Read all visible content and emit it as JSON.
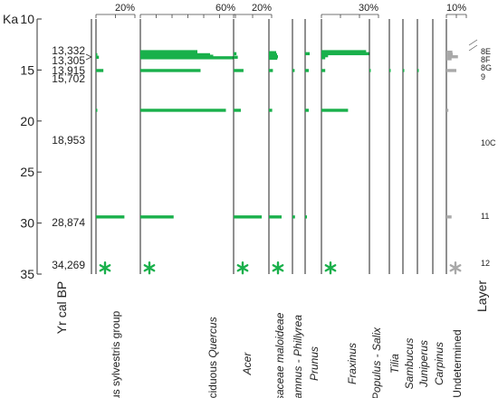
{
  "chart_data": {
    "type": "bar",
    "orientation": "horizontal",
    "y_axis": {
      "unit_label": "Ka",
      "label": "Yr cal  BP",
      "range": [
        10,
        35
      ],
      "ticks": [
        10,
        15,
        20,
        25,
        30,
        35
      ]
    },
    "samples": [
      {
        "age_label": "13,332",
        "age": 13.332,
        "layer": "8E"
      },
      {
        "age_label": "13,305",
        "age": 13.75,
        "layer": "8F"
      },
      {
        "age_label": "13,915",
        "age": 14.3,
        "layer": "8G"
      },
      {
        "age_label": "15,702",
        "age": 15.05,
        "layer": "9"
      },
      {
        "age_label": "18,953",
        "age": 18.95,
        "layer": "10C"
      },
      {
        "age_label": "28,874",
        "age": 29.35,
        "layer": "11"
      },
      {
        "age_label": "34,269",
        "age": 34.3,
        "layer": "12"
      }
    ],
    "layer_header": "Layer",
    "taxa": [
      {
        "parts": [
          {
            "t": "Pinus sylvestris group",
            "i": false
          }
        ],
        "color": "#19b04b",
        "scale_max": 20,
        "scale_label": "20%",
        "asterisk": true,
        "bars": [
          {
            "y": 13.25,
            "v": 0
          },
          {
            "y": 13.5,
            "v": 0.6
          },
          {
            "y": 13.75,
            "v": 1.5
          },
          {
            "y": 15.05,
            "v": 3.8
          },
          {
            "y": 18.95,
            "v": 0.6
          },
          {
            "y": 29.4,
            "v": 14.6
          }
        ]
      },
      {
        "parts": [
          {
            "t": "deciduous ",
            "i": false
          },
          {
            "t": "Quercus",
            "i": true
          }
        ],
        "color": "#19b04b",
        "scale_max": 60,
        "scale_label": "60%",
        "asterisk": true,
        "bars": [
          {
            "y": 13.2,
            "v": 36
          },
          {
            "y": 13.35,
            "v": 36
          },
          {
            "y": 13.5,
            "v": 44
          },
          {
            "y": 13.65,
            "v": 46
          },
          {
            "y": 13.8,
            "v": 59
          },
          {
            "y": 15.05,
            "v": 38
          },
          {
            "y": 18.95,
            "v": 54
          },
          {
            "y": 29.4,
            "v": 21
          }
        ]
      },
      {
        "parts": [
          {
            "t": "Acer",
            "i": true
          }
        ],
        "color": "#19b04b",
        "scale_max": 20,
        "scale_label": "20%",
        "asterisk": true,
        "bars": [
          {
            "y": 13.4,
            "v": 1.5
          },
          {
            "y": 13.75,
            "v": 2.2
          },
          {
            "y": 15.05,
            "v": 5.2
          },
          {
            "y": 18.95,
            "v": 3.8
          },
          {
            "y": 29.4,
            "v": 14.8
          }
        ]
      },
      {
        "parts": [
          {
            "t": "Rosaceae maloideae",
            "i": true
          }
        ],
        "color": "#19b04b",
        "scale_max": null,
        "scale_label": "",
        "asterisk": true,
        "bars": [
          {
            "y": 13.3,
            "v": 4
          },
          {
            "y": 13.5,
            "v": 4.5
          },
          {
            "y": 13.7,
            "v": 5
          },
          {
            "y": 13.85,
            "v": 4.6
          },
          {
            "y": 15.05,
            "v": 2.2
          },
          {
            "y": 18.95,
            "v": 1.8
          },
          {
            "y": 29.4,
            "v": 7
          }
        ]
      },
      {
        "parts": [
          {
            "t": "Rhamnus - Phillyrea",
            "i": true
          }
        ],
        "color": "#19b04b",
        "scale_max": null,
        "scale_label": "",
        "asterisk": false,
        "bars": [
          {
            "y": 15.05,
            "v": 1.2
          },
          {
            "y": 29.4,
            "v": 1.4
          }
        ]
      },
      {
        "parts": [
          {
            "t": "Prunus",
            "i": true
          }
        ],
        "color": "#19b04b",
        "scale_max": null,
        "scale_label": "",
        "asterisk": false,
        "bars": [
          {
            "y": 13.4,
            "v": 2.5
          },
          {
            "y": 15.05,
            "v": 2
          },
          {
            "y": 18.95,
            "v": 2
          },
          {
            "y": 29.4,
            "v": 1
          }
        ]
      },
      {
        "parts": [
          {
            "t": "Fraxinus",
            "i": true
          }
        ],
        "color": "#19b04b",
        "scale_max": 30,
        "scale_label": "30%",
        "asterisk": true,
        "bars": [
          {
            "y": 13.2,
            "v": 23.5
          },
          {
            "y": 13.4,
            "v": 25.5
          },
          {
            "y": 13.6,
            "v": 3.5
          },
          {
            "y": 13.8,
            "v": 2
          },
          {
            "y": 15.05,
            "v": 2
          },
          {
            "y": 18.95,
            "v": 14
          }
        ]
      },
      {
        "parts": [
          {
            "t": "Populus - Salix",
            "i": true
          }
        ],
        "color": "#19b04b",
        "scale_max": null,
        "scale_label": "",
        "asterisk": false,
        "bars": [
          {
            "y": 15.05,
            "v": 0.4
          }
        ]
      },
      {
        "parts": [
          {
            "t": "Tilia",
            "i": true
          }
        ],
        "color": "#19b04b",
        "scale_max": null,
        "scale_label": "",
        "asterisk": false,
        "bars": [
          {
            "y": 15.05,
            "v": 0.4
          }
        ]
      },
      {
        "parts": [
          {
            "t": "Sambucus",
            "i": true
          }
        ],
        "color": "#19b04b",
        "scale_max": null,
        "scale_label": "",
        "asterisk": false,
        "bars": [
          {
            "y": 15.05,
            "v": 0.4
          }
        ]
      },
      {
        "parts": [
          {
            "t": "Juniperus",
            "i": true
          }
        ],
        "color": "#19b04b",
        "scale_max": null,
        "scale_label": "",
        "asterisk": false,
        "bars": [
          {
            "y": 15.05,
            "v": 0.4
          }
        ]
      },
      {
        "parts": [
          {
            "t": "Carpinus",
            "i": true
          }
        ],
        "color": "#19b04b",
        "scale_max": null,
        "scale_label": "",
        "asterisk": false,
        "bars": []
      },
      {
        "parts": [
          {
            "t": "Undetermined",
            "i": false
          }
        ],
        "color": "#a9a9a9",
        "scale_max": 10,
        "scale_label": "10%",
        "asterisk": true,
        "bars": [
          {
            "y": 13.25,
            "v": 3
          },
          {
            "y": 13.45,
            "v": 3.2
          },
          {
            "y": 13.7,
            "v": 5.8
          },
          {
            "y": 13.9,
            "v": 2.6
          },
          {
            "y": 15.05,
            "v": 5
          },
          {
            "y": 18.95,
            "v": 1
          },
          {
            "y": 29.4,
            "v": 2.6
          }
        ]
      }
    ]
  }
}
